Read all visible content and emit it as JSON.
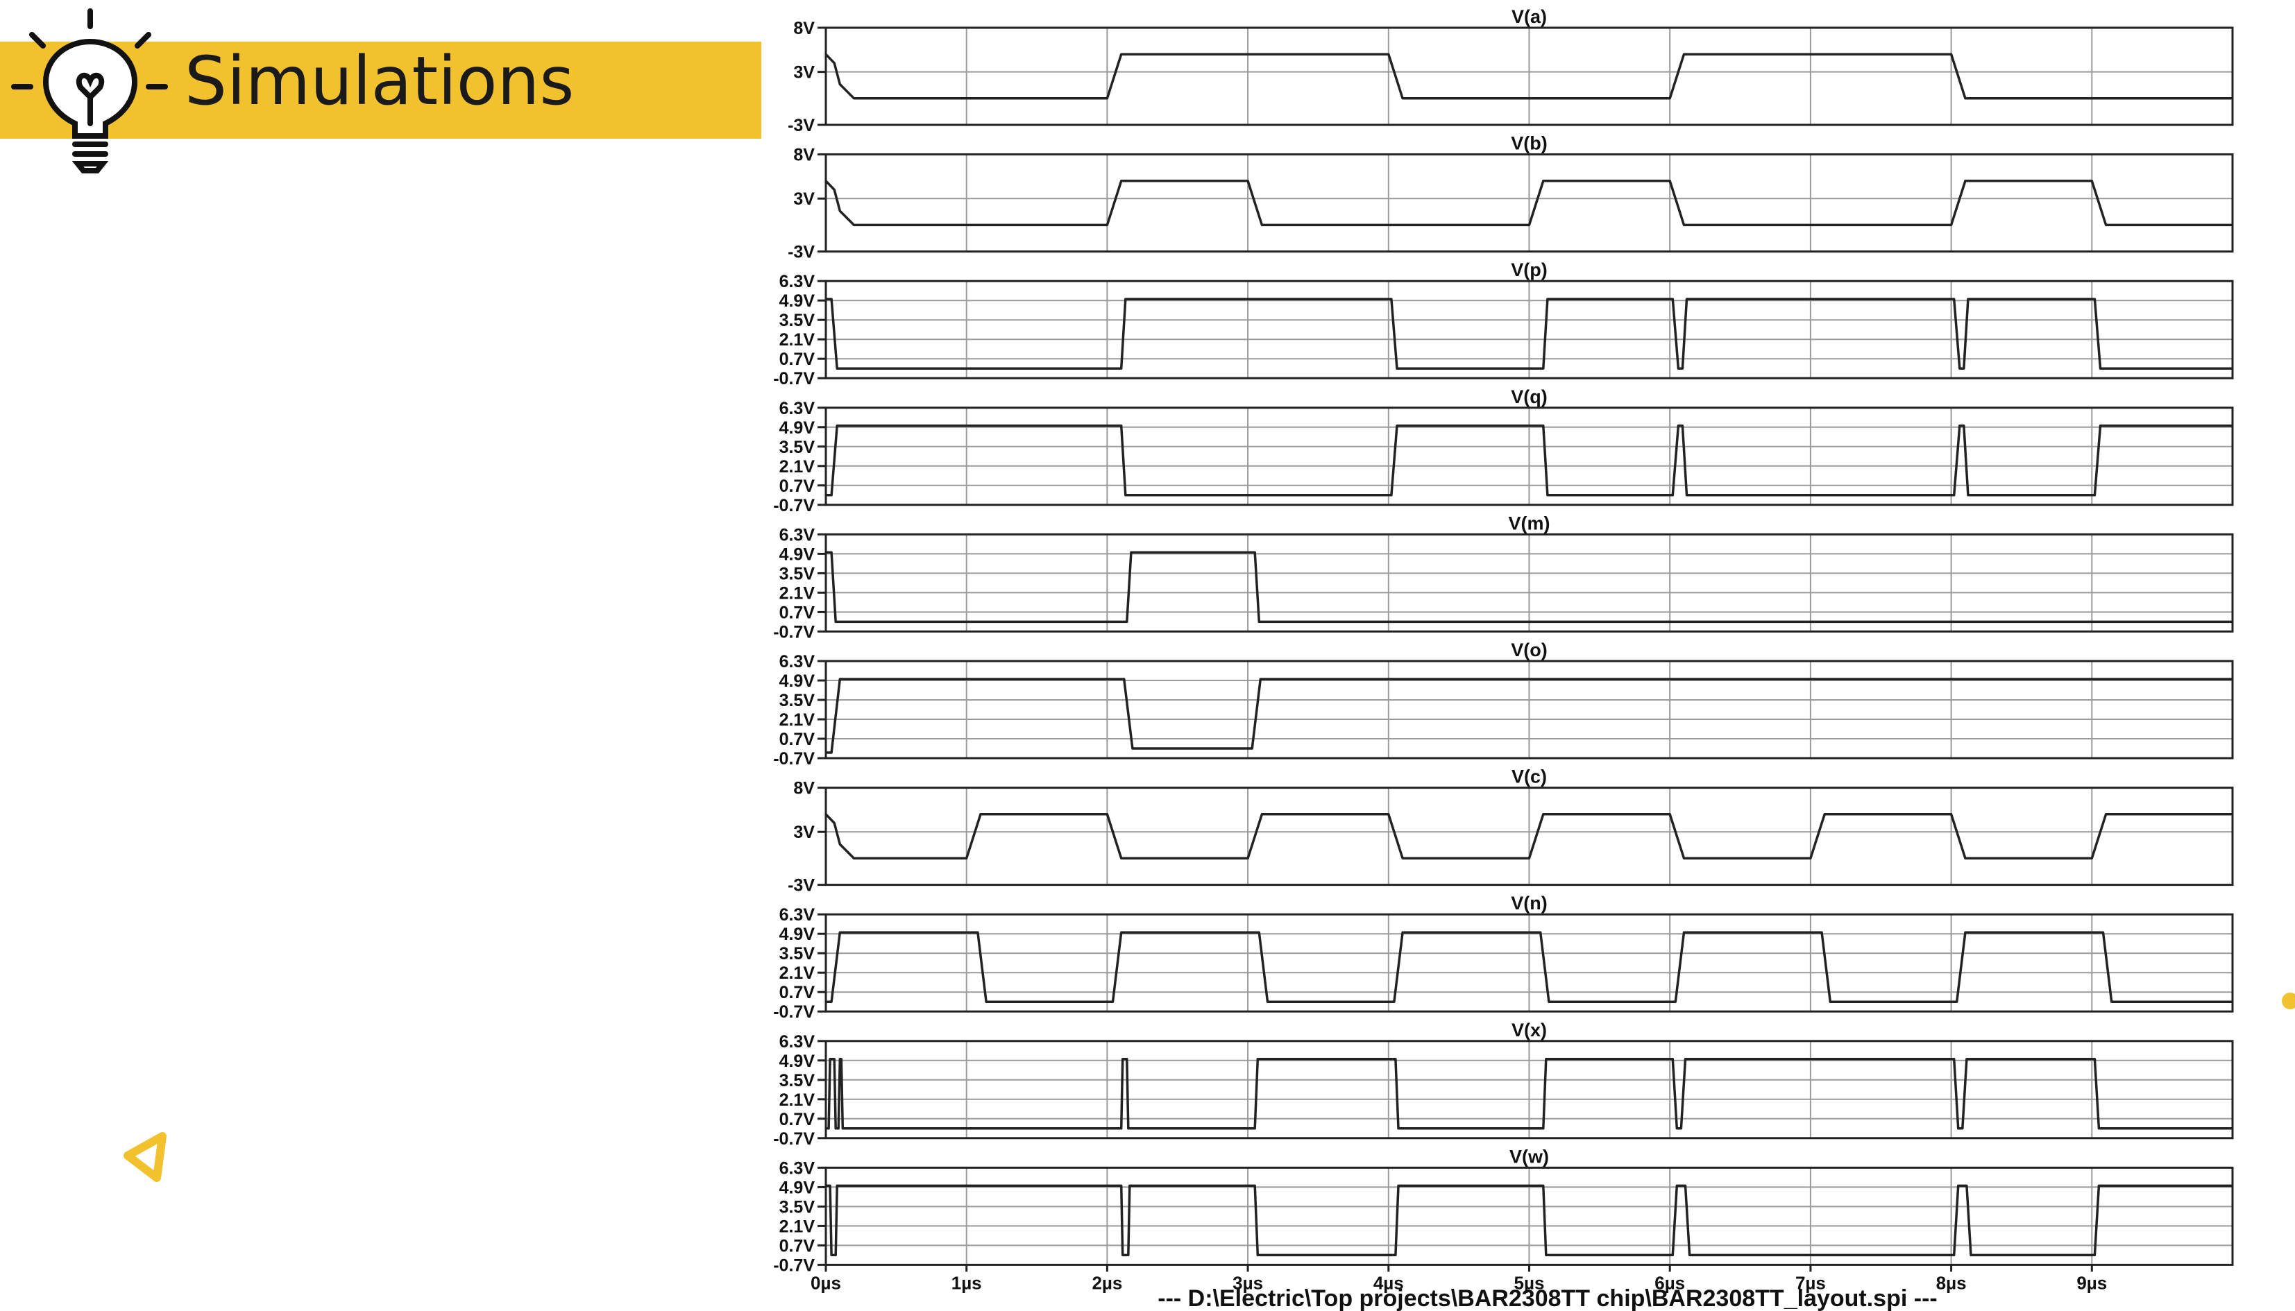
{
  "slide": {
    "title": "Simulations",
    "icons": {
      "bulb": "lightbulb-icon",
      "triangle": "play-triangle-icon",
      "dot": "dot-icon"
    },
    "colors": {
      "accent": "#f2c12e",
      "trace": "#222222",
      "grid": "#9a9a9a",
      "text": "#111111"
    }
  },
  "chart_data": {
    "type": "line",
    "title": "",
    "footer": "---  D:\\Electric\\Top projects\\BAR2308TT chip\\BAR2308TT_layout.spi  ---",
    "xlabel": "",
    "xlim": [
      0,
      10
    ],
    "x_ticks": [
      "0µs",
      "1µs",
      "2µs",
      "3µs",
      "4µs",
      "5µs",
      "6µs",
      "7µs",
      "8µs",
      "9µs"
    ],
    "grid": true,
    "legend": "none",
    "panels": [
      {
        "name": "V(a)",
        "ylim": [
          -3,
          8
        ],
        "y_ticks": [
          "8V",
          "3V",
          "-3V"
        ],
        "y_tick_values": [
          8,
          3,
          -3
        ],
        "points": [
          [
            0,
            5
          ],
          [
            0.06,
            4
          ],
          [
            0.1,
            1.6
          ],
          [
            0.2,
            0
          ],
          [
            2,
            0
          ],
          [
            2.1,
            5
          ],
          [
            4,
            5
          ],
          [
            4.1,
            0
          ],
          [
            6,
            0
          ],
          [
            6.1,
            5
          ],
          [
            8,
            5
          ],
          [
            8.1,
            0
          ],
          [
            10,
            0
          ]
        ]
      },
      {
        "name": "V(b)",
        "ylim": [
          -3,
          8
        ],
        "y_ticks": [
          "8V",
          "3V",
          "-3V"
        ],
        "y_tick_values": [
          8,
          3,
          -3
        ],
        "points": [
          [
            0,
            5
          ],
          [
            0.06,
            4
          ],
          [
            0.1,
            1.6
          ],
          [
            0.2,
            0
          ],
          [
            2,
            0
          ],
          [
            2.1,
            5
          ],
          [
            3,
            5
          ],
          [
            3.1,
            0
          ],
          [
            5,
            0
          ],
          [
            5.1,
            5
          ],
          [
            6,
            5
          ],
          [
            6.1,
            0
          ],
          [
            8,
            0
          ],
          [
            8.1,
            5
          ],
          [
            9,
            5
          ],
          [
            9.1,
            0
          ],
          [
            10,
            0
          ]
        ]
      },
      {
        "name": "V(p)",
        "ylim": [
          -0.7,
          6.3
        ],
        "y_ticks": [
          "6.3V",
          "4.9V",
          "3.5V",
          "2.1V",
          "0.7V",
          "-0.7V"
        ],
        "y_tick_values": [
          6.3,
          4.9,
          3.5,
          2.1,
          0.7,
          -0.7
        ],
        "points": [
          [
            0,
            5
          ],
          [
            0.04,
            5
          ],
          [
            0.08,
            0
          ],
          [
            2.1,
            0
          ],
          [
            2.13,
            5
          ],
          [
            4.02,
            5
          ],
          [
            4.06,
            0
          ],
          [
            5.1,
            0
          ],
          [
            5.13,
            5
          ],
          [
            6.02,
            5
          ],
          [
            6.06,
            0
          ],
          [
            6.09,
            0
          ],
          [
            6.12,
            5
          ],
          [
            8.02,
            5
          ],
          [
            8.06,
            0
          ],
          [
            8.09,
            0
          ],
          [
            8.12,
            5
          ],
          [
            9.02,
            5
          ],
          [
            9.06,
            0
          ],
          [
            10,
            0
          ]
        ]
      },
      {
        "name": "V(q)",
        "ylim": [
          -0.7,
          6.3
        ],
        "y_ticks": [
          "6.3V",
          "4.9V",
          "3.5V",
          "2.1V",
          "0.7V",
          "-0.7V"
        ],
        "y_tick_values": [
          6.3,
          4.9,
          3.5,
          2.1,
          0.7,
          -0.7
        ],
        "points": [
          [
            0,
            0
          ],
          [
            0.04,
            0
          ],
          [
            0.08,
            5
          ],
          [
            2.1,
            5
          ],
          [
            2.13,
            0
          ],
          [
            4.02,
            0
          ],
          [
            4.06,
            5
          ],
          [
            5.1,
            5
          ],
          [
            5.13,
            0
          ],
          [
            6.02,
            0
          ],
          [
            6.06,
            5
          ],
          [
            6.09,
            5
          ],
          [
            6.12,
            0
          ],
          [
            8.02,
            0
          ],
          [
            8.06,
            5
          ],
          [
            8.09,
            5
          ],
          [
            8.12,
            0
          ],
          [
            9.02,
            0
          ],
          [
            9.06,
            5
          ],
          [
            10,
            5
          ]
        ]
      },
      {
        "name": "V(m)",
        "ylim": [
          -0.7,
          6.3
        ],
        "y_ticks": [
          "6.3V",
          "4.9V",
          "3.5V",
          "2.1V",
          "0.7V",
          "-0.7V"
        ],
        "y_tick_values": [
          6.3,
          4.9,
          3.5,
          2.1,
          0.7,
          -0.7
        ],
        "points": [
          [
            0,
            5
          ],
          [
            0.04,
            5
          ],
          [
            0.07,
            0
          ],
          [
            2.14,
            0
          ],
          [
            2.17,
            5
          ],
          [
            3.05,
            5
          ],
          [
            3.08,
            0
          ],
          [
            10,
            0
          ]
        ]
      },
      {
        "name": "V(o)",
        "ylim": [
          -0.7,
          6.3
        ],
        "y_ticks": [
          "6.3V",
          "4.9V",
          "3.5V",
          "2.1V",
          "0.7V",
          "-0.7V"
        ],
        "y_tick_values": [
          6.3,
          4.9,
          3.5,
          2.1,
          0.7,
          -0.7
        ],
        "points": [
          [
            0,
            -0.3
          ],
          [
            0.04,
            -0.3
          ],
          [
            0.1,
            5
          ],
          [
            2.12,
            5
          ],
          [
            2.18,
            0
          ],
          [
            3.03,
            0
          ],
          [
            3.09,
            5
          ],
          [
            10,
            5
          ]
        ]
      },
      {
        "name": "V(c)",
        "ylim": [
          -3,
          8
        ],
        "y_ticks": [
          "8V",
          "3V",
          "-3V"
        ],
        "y_tick_values": [
          8,
          3,
          -3
        ],
        "points": [
          [
            0,
            5
          ],
          [
            0.06,
            4
          ],
          [
            0.1,
            1.6
          ],
          [
            0.2,
            0
          ],
          [
            1,
            0
          ],
          [
            1.1,
            5
          ],
          [
            2,
            5
          ],
          [
            2.1,
            0
          ],
          [
            3,
            0
          ],
          [
            3.1,
            5
          ],
          [
            4,
            5
          ],
          [
            4.1,
            0
          ],
          [
            5,
            0
          ],
          [
            5.1,
            5
          ],
          [
            6,
            5
          ],
          [
            6.1,
            0
          ],
          [
            7,
            0
          ],
          [
            7.1,
            5
          ],
          [
            8,
            5
          ],
          [
            8.1,
            0
          ],
          [
            9,
            0
          ],
          [
            9.1,
            5
          ],
          [
            10,
            5
          ]
        ]
      },
      {
        "name": "V(n)",
        "ylim": [
          -0.7,
          6.3
        ],
        "y_ticks": [
          "6.3V",
          "4.9V",
          "3.5V",
          "2.1V",
          "0.7V",
          "-0.7V"
        ],
        "y_tick_values": [
          6.3,
          4.9,
          3.5,
          2.1,
          0.7,
          -0.7
        ],
        "points": [
          [
            0,
            0
          ],
          [
            0.04,
            0
          ],
          [
            0.1,
            5
          ],
          [
            1.08,
            5
          ],
          [
            1.14,
            0
          ],
          [
            2.04,
            0
          ],
          [
            2.1,
            5
          ],
          [
            3.08,
            5
          ],
          [
            3.14,
            0
          ],
          [
            4.04,
            0
          ],
          [
            4.1,
            5
          ],
          [
            5.08,
            5
          ],
          [
            5.14,
            0
          ],
          [
            6.04,
            0
          ],
          [
            6.1,
            5
          ],
          [
            7.08,
            5
          ],
          [
            7.14,
            0
          ],
          [
            8.04,
            0
          ],
          [
            8.1,
            5
          ],
          [
            9.08,
            5
          ],
          [
            9.14,
            0
          ],
          [
            10,
            0
          ]
        ]
      },
      {
        "name": "V(x)",
        "ylim": [
          -0.7,
          6.3
        ],
        "y_ticks": [
          "6.3V",
          "4.9V",
          "3.5V",
          "2.1V",
          "0.7V",
          "-0.7V"
        ],
        "y_tick_values": [
          6.3,
          4.9,
          3.5,
          2.1,
          0.7,
          -0.7
        ],
        "points": [
          [
            0,
            0
          ],
          [
            0.02,
            0
          ],
          [
            0.03,
            5
          ],
          [
            0.06,
            5
          ],
          [
            0.07,
            0
          ],
          [
            0.09,
            0
          ],
          [
            0.1,
            5
          ],
          [
            0.11,
            5
          ],
          [
            0.12,
            0
          ],
          [
            2.1,
            0
          ],
          [
            2.11,
            5
          ],
          [
            2.14,
            5
          ],
          [
            2.15,
            0
          ],
          [
            3.05,
            0
          ],
          [
            3.07,
            5
          ],
          [
            4.05,
            5
          ],
          [
            4.07,
            0
          ],
          [
            5.1,
            0
          ],
          [
            5.12,
            5
          ],
          [
            6.02,
            5
          ],
          [
            6.05,
            0
          ],
          [
            6.08,
            0
          ],
          [
            6.11,
            5
          ],
          [
            8.02,
            5
          ],
          [
            8.05,
            0
          ],
          [
            8.08,
            0
          ],
          [
            8.11,
            5
          ],
          [
            9.02,
            5
          ],
          [
            9.05,
            0
          ],
          [
            10,
            0
          ]
        ]
      },
      {
        "name": "V(w)",
        "ylim": [
          -0.7,
          6.3
        ],
        "y_ticks": [
          "6.3V",
          "4.9V",
          "3.5V",
          "2.1V",
          "0.7V",
          "-0.7V"
        ],
        "y_tick_values": [
          6.3,
          4.9,
          3.5,
          2.1,
          0.7,
          -0.7
        ],
        "points": [
          [
            0,
            5
          ],
          [
            0.03,
            5
          ],
          [
            0.04,
            0
          ],
          [
            0.07,
            0
          ],
          [
            0.08,
            5
          ],
          [
            2.1,
            5
          ],
          [
            2.11,
            0
          ],
          [
            2.15,
            0
          ],
          [
            2.16,
            5
          ],
          [
            3.05,
            5
          ],
          [
            3.07,
            0
          ],
          [
            4.05,
            0
          ],
          [
            4.07,
            5
          ],
          [
            5.1,
            5
          ],
          [
            5.12,
            0
          ],
          [
            6.02,
            0
          ],
          [
            6.05,
            5
          ],
          [
            6.11,
            5
          ],
          [
            6.14,
            0
          ],
          [
            8.02,
            0
          ],
          [
            8.05,
            5
          ],
          [
            8.11,
            5
          ],
          [
            8.14,
            0
          ],
          [
            9.02,
            0
          ],
          [
            9.05,
            5
          ],
          [
            10,
            5
          ]
        ]
      }
    ]
  }
}
